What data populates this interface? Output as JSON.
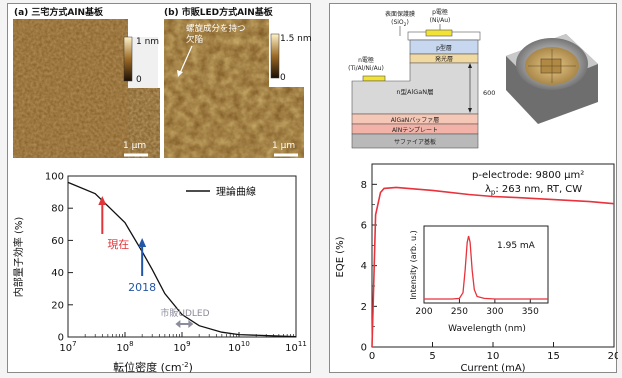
{
  "left_panel": {
    "afm_a": {
      "caption": "(a) 三宅方式AlN基板",
      "scale_top": "1 nm",
      "scale_bottom": "0",
      "scalebar": "1 µm"
    },
    "afm_b": {
      "caption": "(b) 市販LED方式AlN基板",
      "scale_top": "1.5 nm",
      "scale_bottom": "0",
      "scalebar": "1 µm",
      "annotation_line1": "螺旋成分を持つ",
      "annotation_line2": "欠陥"
    },
    "iqe_chart": {
      "ylabel": "内部量子効率 (%)",
      "xlabel": "転位密度 (cm",
      "xlabel_exp": "-2",
      "xlabel_close": ")",
      "legend_label": "理論曲線",
      "y_ticks": [
        "0",
        "20",
        "40",
        "60",
        "80",
        "100"
      ],
      "x_ticks": [
        {
          "base": "10",
          "exp": "7"
        },
        {
          "base": "10",
          "exp": "8"
        },
        {
          "base": "10",
          "exp": "9"
        },
        {
          "base": "10",
          "exp": "10"
        },
        {
          "base": "10",
          "exp": "11"
        }
      ],
      "annotations": {
        "current": "現在",
        "year2018": "2018",
        "commercial": "市販UDLED"
      },
      "colors": {
        "current": "#e0353b",
        "year2018": "#2356a6",
        "commercial": "#8c8c9c",
        "curve": "#111111"
      }
    }
  },
  "right_panel": {
    "diagram": {
      "label_protect_1": "表面保護膜",
      "label_protect_2": "(SiO",
      "label_protect_2_sub": "2",
      "label_protect_2_close": ")",
      "label_p_electrode_1": "p電極",
      "label_p_electrode_2": "(Ni/Au)",
      "label_n_electrode_1": "n電極",
      "label_n_electrode_2": "(Ti/Al/Ni/Au)",
      "layer_p": "p型層",
      "layer_active": "発光層",
      "layer_n": "n型AlGaN層",
      "layer_buffer": "AlGaNバッファ層",
      "layer_template": "AlNテンプレート",
      "layer_substrate": "サファイア基板",
      "thickness_label": "600 nm"
    },
    "eqe_chart": {
      "ylabel": "EQE (%)",
      "xlabel": "Current (mA)",
      "y_ticks": [
        "0",
        "2",
        "4",
        "6",
        "8"
      ],
      "x_ticks": [
        "0",
        "5",
        "10",
        "15",
        "20"
      ],
      "info_line1": "p-electrode: 9800 µm²",
      "info_line2_pre": "λ",
      "info_line2_sub": "p",
      "info_line2_post": ": 263 nm, RT, CW",
      "inset": {
        "ylabel": "Intensity (arb. u.)",
        "xlabel": "Wavelength (nm)",
        "x_ticks": [
          "200",
          "250",
          "300",
          "350"
        ],
        "label": "1.95 mA"
      },
      "colors": {
        "curve": "#e8323c"
      }
    }
  },
  "chart_data": [
    {
      "type": "line",
      "title": "",
      "xlabel": "転位密度 (cm-2)",
      "ylabel": "内部量子効率 (%)",
      "x_scale": "log",
      "xlim": [
        10000000.0,
        100000000000.0
      ],
      "ylim": [
        0,
        100
      ],
      "series": [
        {
          "name": "理論曲線",
          "x": [
            10000000.0,
            30000000.0,
            100000000.0,
            200000000.0,
            300000000.0,
            500000000.0,
            1000000000.0,
            2000000000.0,
            5000000000.0,
            10000000000.0,
            100000000000.0
          ],
          "y": [
            96,
            89,
            71,
            53,
            42,
            27,
            14,
            7,
            3,
            1.5,
            0.2
          ]
        }
      ],
      "annotations": [
        {
          "text": "現在",
          "x": 40000000.0
        },
        {
          "text": "2018",
          "x": 200000000.0
        },
        {
          "text": "市販UDLED",
          "x": 1100000000.0
        }
      ]
    },
    {
      "type": "line",
      "xlabel": "Current (mA)",
      "ylabel": "EQE (%)",
      "xlim": [
        0,
        20
      ],
      "ylim": [
        0,
        9
      ],
      "series": [
        {
          "x": [
            0,
            0.3,
            0.7,
            1,
            2,
            3,
            5,
            8,
            10,
            12,
            15,
            18,
            20
          ],
          "y": [
            0,
            6.5,
            7.6,
            7.8,
            7.85,
            7.8,
            7.7,
            7.5,
            7.4,
            7.35,
            7.25,
            7.15,
            7.05
          ]
        }
      ]
    },
    {
      "type": "line",
      "xlabel": "Wavelength (nm)",
      "ylabel": "Intensity (arb. u.)",
      "xlim": [
        200,
        375
      ],
      "series": [
        {
          "x": [
            200,
            240,
            250,
            255,
            258,
            261,
            263,
            265,
            268,
            271,
            275,
            285,
            300,
            375
          ],
          "y": [
            0,
            0,
            0.01,
            0.1,
            0.45,
            0.9,
            1.0,
            0.9,
            0.45,
            0.15,
            0.04,
            0.01,
            0,
            0
          ]
        }
      ]
    }
  ]
}
